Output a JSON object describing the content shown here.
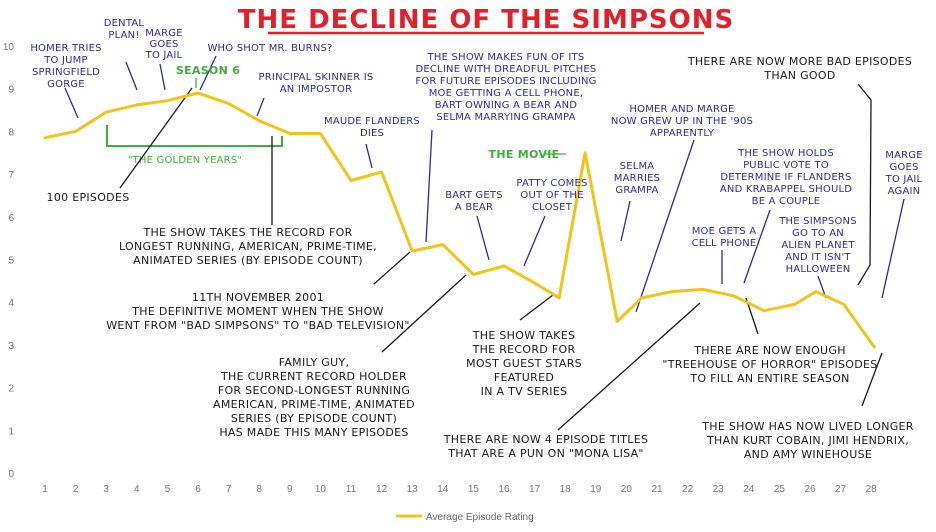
{
  "chart_data": {
    "type": "line",
    "title": "THE DECLINE OF THE SIMPSONS",
    "xlabel": "",
    "ylabel": "",
    "ylim": [
      0,
      10
    ],
    "yticks": [
      "0",
      "1",
      "2",
      "3",
      "4",
      "5",
      "6",
      "7",
      "8",
      "9",
      "10"
    ],
    "categories": [
      "1",
      "2",
      "3",
      "4",
      "5",
      "6",
      "7",
      "8",
      "9",
      "10",
      "11",
      "12",
      "13",
      "14",
      "15",
      "16",
      "17",
      "18",
      "19",
      "20",
      "21",
      "22",
      "23",
      "24",
      "25",
      "26",
      "27",
      "28"
    ],
    "series": [
      {
        "name": "Average Episode Rating",
        "color": "#f2c318",
        "points": [
          {
            "x": 1,
            "y": 7.85
          },
          {
            "x": 2,
            "y": 8.0
          },
          {
            "x": 3,
            "y": 8.45
          },
          {
            "x": 4,
            "y": 8.62
          },
          {
            "x": 5,
            "y": 8.72
          },
          {
            "x": 6,
            "y": 8.9
          },
          {
            "x": 7,
            "y": 8.65
          },
          {
            "x": 8,
            "y": 8.25
          },
          {
            "x": 9,
            "y": 7.95
          },
          {
            "x": 10,
            "y": 7.95
          },
          {
            "x": 11,
            "y": 6.85
          },
          {
            "x": 12,
            "y": 7.05
          },
          {
            "x": 13,
            "y": 5.2
          },
          {
            "x": 14,
            "y": 5.35
          },
          {
            "x": 15,
            "y": 4.65
          },
          {
            "x": 16,
            "y": 4.85
          },
          {
            "x": 17,
            "y": 4.45
          },
          {
            "x": 17.8,
            "y": 4.1
          },
          {
            "x": 18.65,
            "y": 7.5
          },
          {
            "x": 19.7,
            "y": 3.55
          },
          {
            "x": 20.5,
            "y": 4.1
          },
          {
            "x": 21.5,
            "y": 4.25
          },
          {
            "x": 22.5,
            "y": 4.3
          },
          {
            "x": 23.5,
            "y": 4.15
          },
          {
            "x": 24.5,
            "y": 3.8
          },
          {
            "x": 25.5,
            "y": 3.95
          },
          {
            "x": 26.2,
            "y": 4.25
          },
          {
            "x": 27.1,
            "y": 3.95
          },
          {
            "x": 28.1,
            "y": 2.95
          }
        ]
      }
    ],
    "legend": "bottom-center",
    "grid": false,
    "annotations": {
      "homer": [
        "HOMER TRIES",
        "TO JUMP",
        "SPRINGFIELD",
        "GORGE"
      ],
      "dental": [
        "DENTAL",
        "PLAN!"
      ],
      "marge_jail": [
        "MARGE",
        "GOES",
        "TO JAIL"
      ],
      "mr_burns": "WHO SHOT MR. BURNS?",
      "season6": "SEASON 6",
      "skinner": [
        "PRINCIPAL SKINNER IS",
        "AN IMPOSTOR"
      ],
      "maude": [
        "MAUDE FLANDERS",
        "DIES"
      ],
      "golden": "\"THE GOLDEN YEARS\"",
      "hundred": "100 EPISODES",
      "record": [
        "THE SHOW TAKES THE RECORD FOR",
        "LONGEST RUNNING, AMERICAN, PRIME-TIME,",
        "ANIMATED SERIES (BY EPISODE COUNT)"
      ],
      "nov2001": [
        "11TH NOVEMBER 2001",
        "THE DEFINITIVE MOMENT WHEN THE SHOW",
        "WENT FROM \"BAD SIMPSONS\" TO \"BAD TELEVISION\""
      ],
      "family_guy": [
        "FAMILY GUY,",
        "THE CURRENT RECORD HOLDER",
        "FOR SECOND-LONGEST RUNNING",
        "AMERICAN, PRIME-TIME, ANIMATED",
        "SERIES (BY EPISODE COUNT)",
        "HAS MADE THIS MANY EPISODES"
      ],
      "pitches": [
        "THE SHOW MAKES FUN OF ITS",
        "DECLINE WITH DREADFUL PITCHES",
        "FOR FUTURE EPISODES INCLUDING",
        "MOE GETTING A CELL PHONE,",
        "BART OWNING A BEAR AND",
        "SELMA MARRYING GRAMPA"
      ],
      "bart_bear": [
        "BART GETS",
        "A BEAR"
      ],
      "patty": [
        "PATTY COMES",
        "OUT OF THE",
        "CLOSET"
      ],
      "movie": "THE MOVIE",
      "guest_stars": [
        "THE SHOW TAKES",
        "THE RECORD FOR",
        "MOST GUEST STARS",
        "FEATURED",
        "IN A TV SERIES"
      ],
      "selma": [
        "SELMA",
        "MARRIES",
        "GRAMPA"
      ],
      "homer_marge_90s": [
        "HOMER AND MARGE",
        "NOW GREW UP IN THE '90S",
        "APPARENTLY"
      ],
      "more_bad": [
        "THERE ARE NOW MORE BAD EPISODES",
        "THAN GOOD"
      ],
      "public_vote": [
        "THE SHOW HOLDS",
        "PUBLIC VOTE TO",
        "DETERMINE IF FLANDERS",
        "AND KRABAPPEL SHOULD",
        "BE A COUPLE"
      ],
      "moe_phone": [
        "MOE GETS A",
        "CELL PHONE"
      ],
      "alien": [
        "THE SIMPSONS",
        "GO TO AN",
        "ALIEN PLANET",
        "AND IT ISN'T",
        "HALLOWEEN"
      ],
      "marge_jail_again": [
        "MARGE",
        "GOES",
        "TO JAIL",
        "AGAIN"
      ],
      "treehouse": [
        "THERE ARE NOW ENOUGH",
        "\"TREEHOUSE OF HORROR\" EPISODES",
        "TO FILL AN ENTIRE SEASON"
      ],
      "mona_lisa": [
        "THERE ARE NOW 4 EPISODE TITLES",
        "THAT ARE A PUN ON \"MONA LISA\""
      ],
      "outlived": [
        "THE SHOW HAS NOW LIVED LONGER",
        "THAN KURT COBAIN, JIMI HENDRIX,",
        "AND AMY WINEHOUSE"
      ]
    }
  }
}
